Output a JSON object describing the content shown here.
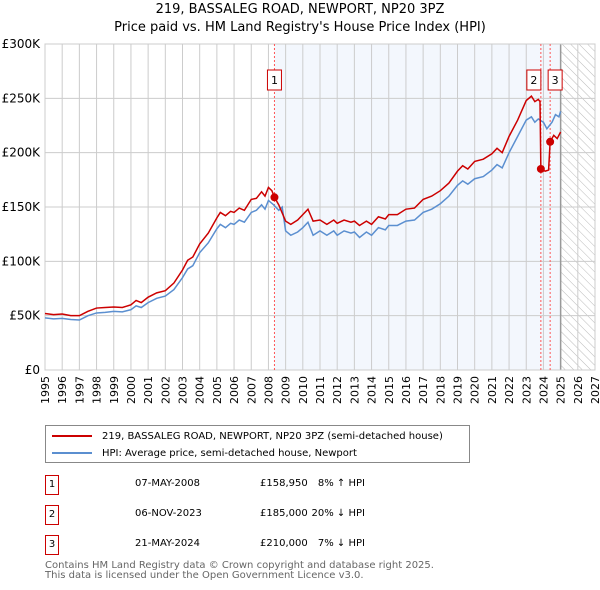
{
  "chart_data": {
    "type": "line",
    "title": "219, BASSALEG ROAD, NEWPORT, NP20 3PZ",
    "subtitle": "Price paid vs. HM Land Registry's House Price Index (HPI)",
    "xlim": [
      1995,
      2027
    ],
    "ylim": [
      0,
      300000
    ],
    "x_ticks": [
      "1995",
      "1996",
      "1997",
      "1998",
      "1999",
      "2000",
      "2001",
      "2002",
      "2003",
      "2004",
      "2005",
      "2006",
      "2007",
      "2008",
      "2009",
      "2010",
      "2011",
      "2012",
      "2013",
      "2014",
      "2015",
      "2016",
      "2017",
      "2018",
      "2019",
      "2020",
      "2021",
      "2022",
      "2023",
      "2024",
      "2025",
      "2026",
      "2027"
    ],
    "y_ticks": [
      {
        "v": 0,
        "label": "£0"
      },
      {
        "v": 50000,
        "label": "£50K"
      },
      {
        "v": 100000,
        "label": "£100K"
      },
      {
        "v": 150000,
        "label": "£150K"
      },
      {
        "v": 200000,
        "label": "£200K"
      },
      {
        "v": 250000,
        "label": "£250K"
      },
      {
        "v": 300000,
        "label": "£300K"
      }
    ],
    "grid": true,
    "shaded_range": [
      2008.35,
      2025.0
    ],
    "hatched_from": 2025.0,
    "series": [
      {
        "name": "219, BASSALEG ROAD, NEWPORT, NP20 3PZ (semi-detached house)",
        "color": "#cc0000",
        "points": [
          [
            1995,
            52000
          ],
          [
            1995.5,
            51000
          ],
          [
            1996,
            51500
          ],
          [
            1996.5,
            50000
          ],
          [
            1997,
            50000
          ],
          [
            1997.5,
            54000
          ],
          [
            1998,
            57000
          ],
          [
            1998.5,
            57500
          ],
          [
            1999,
            58000
          ],
          [
            1999.5,
            57500
          ],
          [
            2000,
            60000
          ],
          [
            2000.3,
            64000
          ],
          [
            2000.6,
            62000
          ],
          [
            2001,
            67000
          ],
          [
            2001.5,
            71000
          ],
          [
            2002,
            73000
          ],
          [
            2002.5,
            80000
          ],
          [
            2003,
            92000
          ],
          [
            2003.3,
            101000
          ],
          [
            2003.6,
            104000
          ],
          [
            2004,
            116000
          ],
          [
            2004.5,
            126000
          ],
          [
            2005,
            140000
          ],
          [
            2005.2,
            145000
          ],
          [
            2005.5,
            142000
          ],
          [
            2005.8,
            146000
          ],
          [
            2006,
            145000
          ],
          [
            2006.3,
            149000
          ],
          [
            2006.6,
            147000
          ],
          [
            2007,
            157000
          ],
          [
            2007.3,
            158000
          ],
          [
            2007.6,
            164000
          ],
          [
            2007.8,
            160000
          ],
          [
            2008,
            168000
          ],
          [
            2008.2,
            165000
          ],
          [
            2008.35,
            158950
          ],
          [
            2008.6,
            152000
          ],
          [
            2009,
            137000
          ],
          [
            2009.3,
            134000
          ],
          [
            2009.7,
            138000
          ],
          [
            2010,
            143000
          ],
          [
            2010.3,
            148000
          ],
          [
            2010.6,
            137000
          ],
          [
            2011,
            138000
          ],
          [
            2011.4,
            134000
          ],
          [
            2011.8,
            138000
          ],
          [
            2012,
            135000
          ],
          [
            2012.4,
            138000
          ],
          [
            2012.8,
            136000
          ],
          [
            2013,
            137000
          ],
          [
            2013.3,
            133000
          ],
          [
            2013.7,
            137000
          ],
          [
            2014,
            134000
          ],
          [
            2014.4,
            141000
          ],
          [
            2014.8,
            139000
          ],
          [
            2015,
            143000
          ],
          [
            2015.5,
            143000
          ],
          [
            2016,
            148000
          ],
          [
            2016.5,
            149000
          ],
          [
            2017,
            157000
          ],
          [
            2017.5,
            160000
          ],
          [
            2018,
            165000
          ],
          [
            2018.5,
            172000
          ],
          [
            2019,
            183000
          ],
          [
            2019.3,
            188000
          ],
          [
            2019.6,
            185000
          ],
          [
            2020,
            192000
          ],
          [
            2020.5,
            194000
          ],
          [
            2021,
            199000
          ],
          [
            2021.3,
            204000
          ],
          [
            2021.6,
            200000
          ],
          [
            2022,
            215000
          ],
          [
            2022.5,
            230000
          ],
          [
            2023,
            248000
          ],
          [
            2023.3,
            252000
          ],
          [
            2023.5,
            247000
          ],
          [
            2023.7,
            249000
          ],
          [
            2023.8,
            247000
          ],
          [
            2023.85,
            185000
          ],
          [
            2024.1,
            183000
          ],
          [
            2024.3,
            184000
          ],
          [
            2024.39,
            210000
          ],
          [
            2024.6,
            216000
          ],
          [
            2024.8,
            213000
          ],
          [
            2025,
            219000
          ]
        ]
      },
      {
        "name": "HPI: Average price, semi-detached house, Newport",
        "color": "#5b8fd0",
        "points": [
          [
            1995,
            48000
          ],
          [
            1995.5,
            47000
          ],
          [
            1996,
            47500
          ],
          [
            1996.5,
            46500
          ],
          [
            1997,
            46000
          ],
          [
            1997.5,
            50000
          ],
          [
            1998,
            52500
          ],
          [
            1998.5,
            53000
          ],
          [
            1999,
            54000
          ],
          [
            1999.5,
            53500
          ],
          [
            2000,
            55500
          ],
          [
            2000.3,
            59000
          ],
          [
            2000.6,
            57500
          ],
          [
            2001,
            62000
          ],
          [
            2001.5,
            66000
          ],
          [
            2002,
            68000
          ],
          [
            2002.5,
            74000
          ],
          [
            2003,
            85000
          ],
          [
            2003.3,
            93000
          ],
          [
            2003.6,
            96000
          ],
          [
            2004,
            108000
          ],
          [
            2004.5,
            117000
          ],
          [
            2005,
            130000
          ],
          [
            2005.2,
            134000
          ],
          [
            2005.5,
            131000
          ],
          [
            2005.8,
            135000
          ],
          [
            2006,
            134000
          ],
          [
            2006.3,
            138000
          ],
          [
            2006.6,
            136000
          ],
          [
            2007,
            145000
          ],
          [
            2007.3,
            147000
          ],
          [
            2007.6,
            152000
          ],
          [
            2007.8,
            148000
          ],
          [
            2008,
            156000
          ],
          [
            2008.3,
            152000
          ],
          [
            2008.6,
            147000
          ],
          [
            2008.8,
            150000
          ],
          [
            2009,
            128000
          ],
          [
            2009.3,
            124000
          ],
          [
            2009.7,
            127000
          ],
          [
            2010,
            131000
          ],
          [
            2010.3,
            136000
          ],
          [
            2010.6,
            124000
          ],
          [
            2011,
            128000
          ],
          [
            2011.4,
            124000
          ],
          [
            2011.8,
            128000
          ],
          [
            2012,
            124000
          ],
          [
            2012.4,
            128000
          ],
          [
            2012.8,
            126000
          ],
          [
            2013,
            127000
          ],
          [
            2013.3,
            122000
          ],
          [
            2013.7,
            127000
          ],
          [
            2014,
            124000
          ],
          [
            2014.4,
            131000
          ],
          [
            2014.8,
            129000
          ],
          [
            2015,
            133000
          ],
          [
            2015.5,
            133000
          ],
          [
            2016,
            137000
          ],
          [
            2016.5,
            138000
          ],
          [
            2017,
            145000
          ],
          [
            2017.5,
            148000
          ],
          [
            2018,
            153000
          ],
          [
            2018.5,
            160000
          ],
          [
            2019,
            170000
          ],
          [
            2019.3,
            174000
          ],
          [
            2019.6,
            171000
          ],
          [
            2020,
            176000
          ],
          [
            2020.5,
            178000
          ],
          [
            2021,
            184000
          ],
          [
            2021.3,
            189000
          ],
          [
            2021.6,
            186000
          ],
          [
            2022,
            200000
          ],
          [
            2022.5,
            215000
          ],
          [
            2023,
            230000
          ],
          [
            2023.3,
            233000
          ],
          [
            2023.5,
            228000
          ],
          [
            2023.7,
            231000
          ],
          [
            2024,
            228000
          ],
          [
            2024.2,
            222000
          ],
          [
            2024.5,
            228000
          ],
          [
            2024.7,
            235000
          ],
          [
            2024.9,
            233000
          ],
          [
            2025,
            238000
          ]
        ]
      }
    ],
    "sales": [
      {
        "id": "1",
        "year": 2008.35,
        "price": 158950,
        "date": "07-MAY-2008",
        "price_label": "£158,950",
        "hpi": "8% ↑ HPI"
      },
      {
        "id": "2",
        "year": 2023.85,
        "price": 185000,
        "date": "06-NOV-2023",
        "price_label": "£185,000",
        "hpi": "20% ↓ HPI"
      },
      {
        "id": "3",
        "year": 2024.39,
        "price": 210000,
        "date": "21-MAY-2024",
        "price_label": "£210,000",
        "hpi": "7% ↓ HPI"
      }
    ]
  },
  "footer": {
    "line1": "Contains HM Land Registry data © Crown copyright and database right 2025.",
    "line2": "This data is licensed under the Open Government Licence v3.0."
  }
}
